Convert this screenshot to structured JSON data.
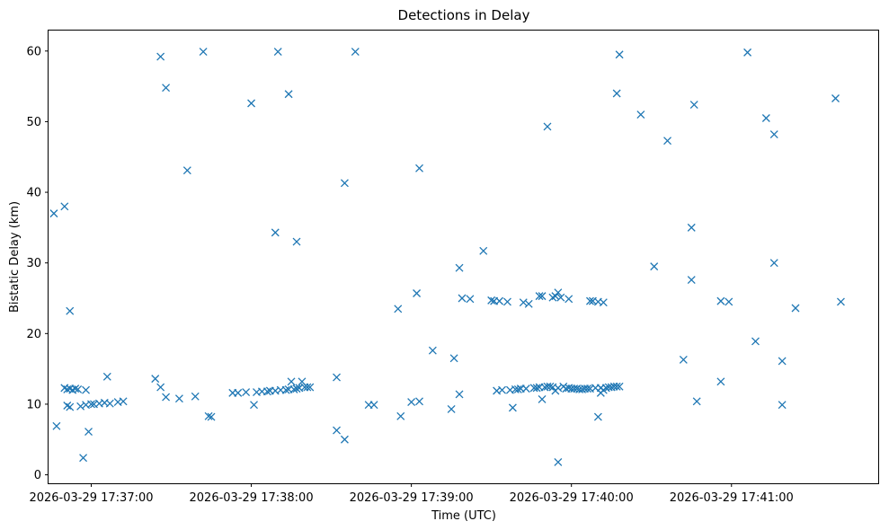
{
  "chart_data": {
    "type": "scatter",
    "title": "Detections in Delay",
    "xlabel": "Time (UTC)",
    "ylabel": "Bistatic Delay (km)",
    "ylim": [
      -1.2,
      62.9
    ],
    "xlim": [
      "2026-03-29 17:36:44",
      "2026-03-29 17:41:55"
    ],
    "yticks": [
      0,
      10,
      20,
      30,
      40,
      50,
      60
    ],
    "xticks": [
      "2026-03-29 17:37:00",
      "2026-03-29 17:38:00",
      "2026-03-29 17:39:00",
      "2026-03-29 17:40:00",
      "2026-03-29 17:41:00"
    ],
    "grid": false,
    "marker": "x",
    "color": "#1f77b4",
    "points": [
      [
        "17:36:46",
        37.0
      ],
      [
        "17:36:47",
        6.9
      ],
      [
        "17:36:50",
        38.0
      ],
      [
        "17:36:50",
        12.3
      ],
      [
        "17:36:51",
        9.8
      ],
      [
        "17:36:51",
        12.1
      ],
      [
        "17:36:52",
        23.2
      ],
      [
        "17:36:52",
        9.6
      ],
      [
        "17:36:52",
        12.2
      ],
      [
        "17:36:53",
        12.0
      ],
      [
        "17:36:54",
        12.2
      ],
      [
        "17:36:55",
        12.1
      ],
      [
        "17:36:56",
        9.7
      ],
      [
        "17:36:57",
        2.4
      ],
      [
        "17:36:58",
        12.0
      ],
      [
        "17:36:58",
        9.9
      ],
      [
        "17:36:59",
        6.1
      ],
      [
        "17:37:00",
        10.0
      ],
      [
        "17:37:01",
        10.0
      ],
      [
        "17:37:03",
        10.1
      ],
      [
        "17:37:05",
        10.2
      ],
      [
        "17:37:06",
        13.9
      ],
      [
        "17:37:07",
        10.1
      ],
      [
        "17:37:10",
        10.3
      ],
      [
        "17:37:12",
        10.4
      ],
      [
        "17:37:24",
        13.6
      ],
      [
        "17:37:26",
        59.2
      ],
      [
        "17:37:26",
        12.4
      ],
      [
        "17:37:28",
        54.8
      ],
      [
        "17:37:28",
        11.0
      ],
      [
        "17:37:33",
        10.8
      ],
      [
        "17:37:36",
        43.1
      ],
      [
        "17:37:39",
        11.1
      ],
      [
        "17:37:42",
        59.9
      ],
      [
        "17:37:44",
        8.3
      ],
      [
        "17:37:45",
        8.2
      ],
      [
        "17:37:53",
        11.6
      ],
      [
        "17:37:55",
        11.6
      ],
      [
        "17:37:58",
        11.7
      ],
      [
        "17:38:00",
        52.6
      ],
      [
        "17:38:01",
        9.9
      ],
      [
        "17:38:02",
        11.7
      ],
      [
        "17:38:04",
        11.8
      ],
      [
        "17:38:06",
        11.8
      ],
      [
        "17:38:07",
        11.9
      ],
      [
        "17:38:09",
        34.3
      ],
      [
        "17:38:09",
        11.9
      ],
      [
        "17:38:10",
        59.9
      ],
      [
        "17:38:11",
        12.0
      ],
      [
        "17:38:13",
        12.0
      ],
      [
        "17:38:14",
        53.9
      ],
      [
        "17:38:14",
        12.1
      ],
      [
        "17:38:15",
        13.2
      ],
      [
        "17:38:16",
        12.1
      ],
      [
        "17:38:17",
        33.0
      ],
      [
        "17:38:17",
        12.2
      ],
      [
        "17:38:18",
        12.3
      ],
      [
        "17:38:19",
        13.2
      ],
      [
        "17:38:20",
        12.4
      ],
      [
        "17:38:21",
        12.4
      ],
      [
        "17:38:22",
        12.4
      ],
      [
        "17:38:32",
        6.3
      ],
      [
        "17:38:32",
        13.8
      ],
      [
        "17:38:35",
        41.3
      ],
      [
        "17:38:35",
        5.0
      ],
      [
        "17:38:39",
        59.9
      ],
      [
        "17:38:44",
        9.9
      ],
      [
        "17:38:46",
        9.9
      ],
      [
        "17:38:55",
        23.5
      ],
      [
        "17:38:56",
        8.3
      ],
      [
        "17:39:00",
        10.3
      ],
      [
        "17:39:02",
        25.7
      ],
      [
        "17:39:03",
        43.4
      ],
      [
        "17:39:03",
        10.4
      ],
      [
        "17:39:08",
        17.6
      ],
      [
        "17:39:15",
        9.3
      ],
      [
        "17:39:16",
        16.5
      ],
      [
        "17:39:18",
        11.4
      ],
      [
        "17:39:18",
        29.3
      ],
      [
        "17:39:19",
        25.0
      ],
      [
        "17:39:22",
        24.9
      ],
      [
        "17:39:27",
        31.7
      ],
      [
        "17:39:30",
        24.7
      ],
      [
        "17:39:31",
        24.6
      ],
      [
        "17:39:32",
        11.9
      ],
      [
        "17:39:33",
        24.6
      ],
      [
        "17:39:34",
        12.0
      ],
      [
        "17:39:36",
        24.5
      ],
      [
        "17:39:37",
        12.0
      ],
      [
        "17:39:38",
        9.5
      ],
      [
        "17:39:39",
        12.1
      ],
      [
        "17:39:40",
        12.1
      ],
      [
        "17:39:41",
        12.2
      ],
      [
        "17:39:42",
        24.4
      ],
      [
        "17:39:43",
        12.2
      ],
      [
        "17:39:44",
        24.2
      ],
      [
        "17:39:46",
        12.3
      ],
      [
        "17:39:47",
        12.3
      ],
      [
        "17:39:48",
        25.3
      ],
      [
        "17:39:48",
        12.4
      ],
      [
        "17:39:49",
        10.7
      ],
      [
        "17:39:49",
        25.3
      ],
      [
        "17:39:50",
        12.4
      ],
      [
        "17:39:51",
        49.3
      ],
      [
        "17:39:51",
        12.5
      ],
      [
        "17:39:52",
        12.5
      ],
      [
        "17:39:53",
        25.1
      ],
      [
        "17:39:53",
        12.4
      ],
      [
        "17:39:54",
        25.3
      ],
      [
        "17:39:54",
        11.9
      ],
      [
        "17:39:55",
        1.8
      ],
      [
        "17:39:55",
        25.8
      ],
      [
        "17:39:55",
        12.3
      ],
      [
        "17:39:56",
        25.1
      ],
      [
        "17:39:57",
        12.5
      ],
      [
        "17:39:58",
        12.2
      ],
      [
        "17:39:59",
        24.9
      ],
      [
        "17:39:59",
        12.3
      ],
      [
        "17:40:00",
        12.2
      ],
      [
        "17:40:01",
        12.2
      ],
      [
        "17:40:02",
        12.2
      ],
      [
        "17:40:03",
        12.1
      ],
      [
        "17:40:04",
        12.1
      ],
      [
        "17:40:05",
        12.2
      ],
      [
        "17:40:06",
        12.2
      ],
      [
        "17:40:07",
        24.6
      ],
      [
        "17:40:07",
        12.2
      ],
      [
        "17:40:08",
        24.6
      ],
      [
        "17:40:09",
        12.3
      ],
      [
        "17:40:10",
        8.2
      ],
      [
        "17:40:10",
        24.5
      ],
      [
        "17:40:11",
        11.6
      ],
      [
        "17:40:11",
        12.3
      ],
      [
        "17:40:12",
        24.4
      ],
      [
        "17:40:12",
        12.0
      ],
      [
        "17:40:13",
        12.3
      ],
      [
        "17:40:14",
        12.4
      ],
      [
        "17:40:15",
        12.4
      ],
      [
        "17:40:16",
        12.5
      ],
      [
        "17:40:17",
        54.0
      ],
      [
        "17:40:17",
        12.5
      ],
      [
        "17:40:18",
        59.5
      ],
      [
        "17:40:18",
        12.5
      ],
      [
        "17:40:26",
        51.0
      ],
      [
        "17:40:31",
        29.5
      ],
      [
        "17:40:36",
        47.3
      ],
      [
        "17:40:42",
        16.3
      ],
      [
        "17:40:45",
        35.0
      ],
      [
        "17:40:45",
        27.6
      ],
      [
        "17:40:46",
        52.4
      ],
      [
        "17:40:47",
        10.4
      ],
      [
        "17:40:56",
        13.2
      ],
      [
        "17:40:56",
        24.6
      ],
      [
        "17:40:59",
        24.5
      ],
      [
        "17:41:06",
        59.8
      ],
      [
        "17:41:09",
        18.9
      ],
      [
        "17:41:13",
        50.5
      ],
      [
        "17:41:16",
        48.2
      ],
      [
        "17:41:16",
        30.0
      ],
      [
        "17:41:19",
        16.1
      ],
      [
        "17:41:19",
        9.9
      ],
      [
        "17:41:24",
        23.6
      ],
      [
        "17:41:39",
        53.3
      ],
      [
        "17:41:41",
        24.5
      ]
    ]
  }
}
